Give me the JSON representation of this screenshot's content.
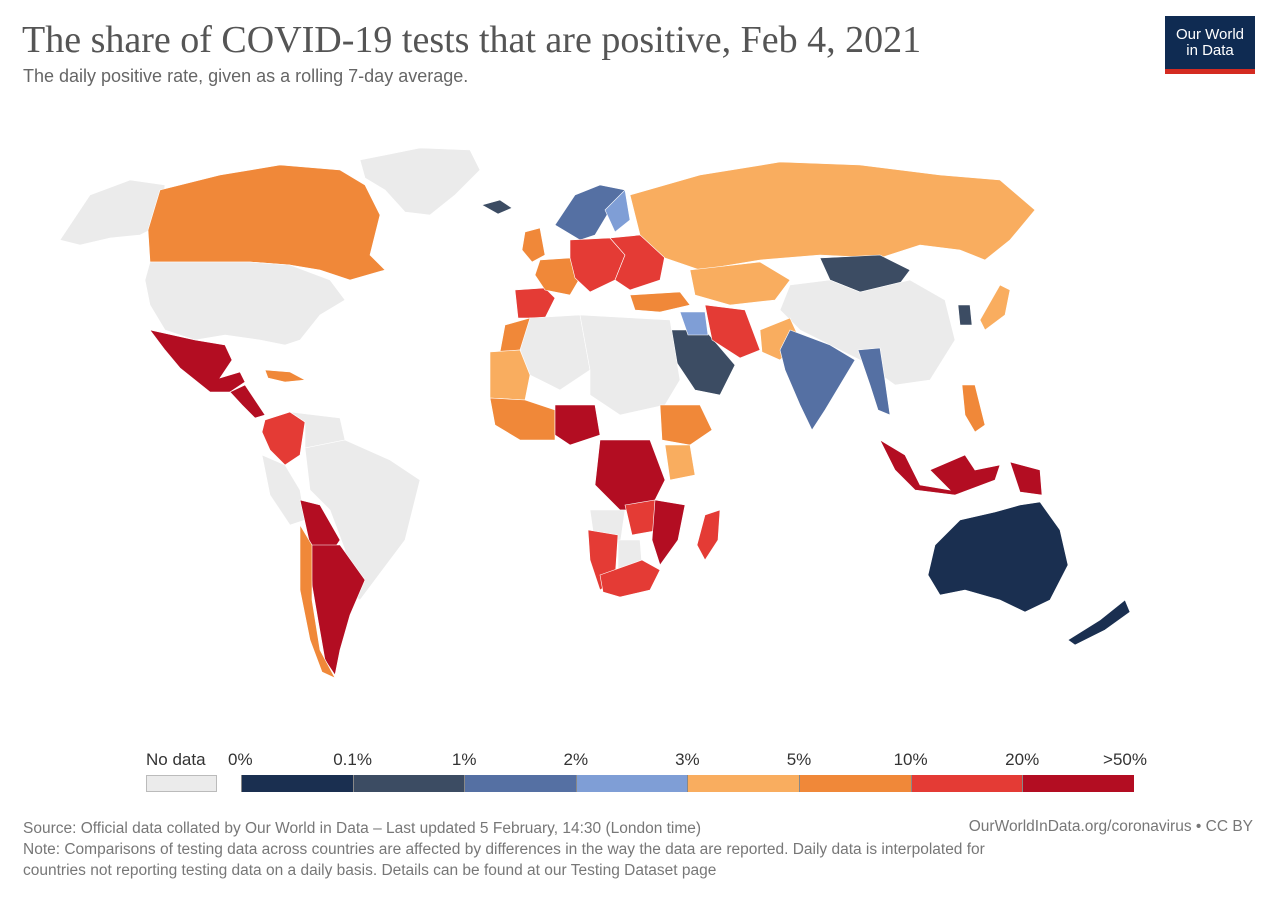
{
  "header": {
    "title": "The share of COVID-19 tests that are positive, Feb 4, 2021",
    "subtitle": "The daily positive rate, given as a rolling 7-day average.",
    "logo_line1": "Our World",
    "logo_line2": "in Data"
  },
  "legend": {
    "no_data_label": "No data",
    "ticks": [
      "0%",
      "0.1%",
      "1%",
      "2%",
      "3%",
      "5%",
      "10%",
      "20%",
      ">50%"
    ],
    "bins": [
      {
        "color": "#1a2f50"
      },
      {
        "color": "#3c4c63"
      },
      {
        "color": "#5570a3"
      },
      {
        "color": "#7f9ed6"
      },
      {
        "color": "#f9ad5f"
      },
      {
        "color": "#f08839"
      },
      {
        "color": "#e43b35"
      },
      {
        "color": "#b30d22"
      }
    ],
    "no_data_color": "#ebebeb"
  },
  "footer": {
    "source": "Source: Official data collated by Our World in Data – Last updated 5 February, 14:30 (London time)",
    "url": "OurWorldInData.org/coronavirus • CC BY",
    "note_line1": "Note: Comparisons of testing data across countries are affected by differences in the way the data are reported. Daily data is interpolated for",
    "note_line2": "countries not reporting testing data on a daily basis. Details can be found at our Testing Dataset page"
  },
  "regions": [
    {
      "id": "greenland",
      "color": "#ebebeb"
    },
    {
      "id": "alaska",
      "color": "#ebebeb"
    },
    {
      "id": "canada",
      "color": "#f08839"
    },
    {
      "id": "usa",
      "color": "#ebebeb"
    },
    {
      "id": "mexico",
      "color": "#b30d22"
    },
    {
      "id": "central-america",
      "color": "#b30d22"
    },
    {
      "id": "cuba",
      "color": "#f08839"
    },
    {
      "id": "colombia",
      "color": "#e43b35"
    },
    {
      "id": "venezuela",
      "color": "#ebebeb"
    },
    {
      "id": "brazil",
      "color": "#ebebeb"
    },
    {
      "id": "peru",
      "color": "#ebebeb"
    },
    {
      "id": "bolivia",
      "color": "#b30d22"
    },
    {
      "id": "argentina",
      "color": "#b30d22"
    },
    {
      "id": "chile",
      "color": "#f08839"
    },
    {
      "id": "iceland",
      "color": "#3c4c63"
    },
    {
      "id": "scandinavia",
      "color": "#5570a3"
    },
    {
      "id": "finland",
      "color": "#7f9ed6"
    },
    {
      "id": "uk",
      "color": "#f08839"
    },
    {
      "id": "spain",
      "color": "#e43b35"
    },
    {
      "id": "france",
      "color": "#f08839"
    },
    {
      "id": "central-europe",
      "color": "#e43b35"
    },
    {
      "id": "eastern-europe",
      "color": "#e43b35"
    },
    {
      "id": "russia",
      "color": "#f9ad5f"
    },
    {
      "id": "turkey",
      "color": "#f08839"
    },
    {
      "id": "kazakhstan",
      "color": "#f9ad5f"
    },
    {
      "id": "mongolia",
      "color": "#3c4c63"
    },
    {
      "id": "china",
      "color": "#ebebeb"
    },
    {
      "id": "saudi-arabia",
      "color": "#3c4c63"
    },
    {
      "id": "iraq",
      "color": "#7f9ed6"
    },
    {
      "id": "iran",
      "color": "#e43b35"
    },
    {
      "id": "pakistan",
      "color": "#f9ad5f"
    },
    {
      "id": "india",
      "color": "#5570a3"
    },
    {
      "id": "myanmar",
      "color": "#5570a3"
    },
    {
      "id": "japan",
      "color": "#f9ad5f"
    },
    {
      "id": "korea",
      "color": "#3c4c63"
    },
    {
      "id": "philippines",
      "color": "#f08839"
    },
    {
      "id": "indonesia",
      "color": "#b30d22"
    },
    {
      "id": "papua",
      "color": "#b30d22"
    },
    {
      "id": "morocco",
      "color": "#f08839"
    },
    {
      "id": "algeria",
      "color": "#ebebeb"
    },
    {
      "id": "mauritania",
      "color": "#f9ad5f"
    },
    {
      "id": "west-africa",
      "color": "#f08839"
    },
    {
      "id": "nigeria",
      "color": "#b30d22"
    },
    {
      "id": "north-africa",
      "color": "#ebebeb"
    },
    {
      "id": "ethiopia",
      "color": "#f08839"
    },
    {
      "id": "kenya",
      "color": "#f9ad5f"
    },
    {
      "id": "drc",
      "color": "#b30d22"
    },
    {
      "id": "angola",
      "color": "#ebebeb"
    },
    {
      "id": "zambia",
      "color": "#e43b35"
    },
    {
      "id": "mozambique",
      "color": "#b30d22"
    },
    {
      "id": "namibia",
      "color": "#e43b35"
    },
    {
      "id": "botswana",
      "color": "#ebebeb"
    },
    {
      "id": "south-africa",
      "color": "#e43b35"
    },
    {
      "id": "madagascar",
      "color": "#e43b35"
    },
    {
      "id": "australia",
      "color": "#1a2f50"
    },
    {
      "id": "new-zealand",
      "color": "#1a2f50"
    }
  ]
}
